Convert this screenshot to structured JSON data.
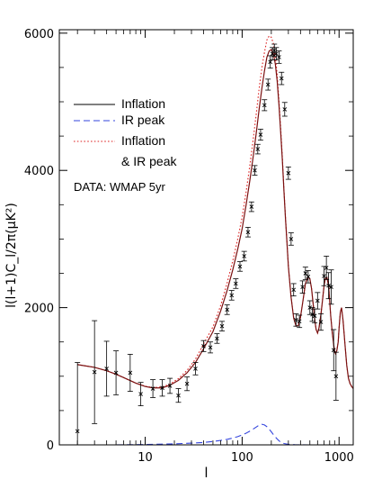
{
  "chart_data": {
    "type": "line",
    "title": "",
    "xlabel": "l",
    "ylabel": "l(l+1)C_l/2π(μK²)",
    "xscale": "log",
    "xlim": [
      1.3,
      1400
    ],
    "ylim": [
      0,
      6050
    ],
    "x_ticks": [
      {
        "value": 10,
        "label": "10"
      },
      {
        "value": 100,
        "label": "100"
      },
      {
        "value": 1000,
        "label": "1000"
      }
    ],
    "y_ticks": [
      {
        "value": 0,
        "label": "0"
      },
      {
        "value": 2000,
        "label": "2000"
      },
      {
        "value": 4000,
        "label": "4000"
      },
      {
        "value": 6000,
        "label": "6000"
      }
    ],
    "grid": false,
    "legend_position": "upper-left",
    "legend": [
      {
        "label": "Inflation",
        "style": "solid",
        "color": "#000000"
      },
      {
        "label": "IR peak",
        "style": "dashed",
        "color": "#3344dd"
      },
      {
        "label": "Inflation",
        "style": "dotted",
        "color": "#dd2222"
      },
      {
        "label": "& IR peak",
        "style": "none",
        "color": "#000000"
      }
    ],
    "annotation": "DATA: WMAP 5yr",
    "series": [
      {
        "name": "Inflation",
        "style": "solid",
        "color": "#7a1010",
        "x": [
          2,
          3,
          4,
          5,
          6,
          8,
          10,
          12,
          15,
          18,
          22,
          27,
          33,
          40,
          50,
          60,
          70,
          80,
          90,
          100,
          110,
          120,
          130,
          140,
          150,
          160,
          170,
          180,
          190,
          200,
          210,
          220,
          230,
          240,
          250,
          260,
          270,
          280,
          290,
          300,
          320,
          340,
          360,
          380,
          400,
          420,
          450,
          480,
          500,
          520,
          540,
          560,
          580,
          600,
          620,
          650,
          680,
          700,
          720,
          750,
          780,
          800,
          820,
          850,
          880,
          900,
          920,
          950,
          980,
          1000,
          1030,
          1060,
          1100,
          1150,
          1200,
          1250,
          1300,
          1350,
          1400
        ],
        "y": [
          1170,
          1130,
          1080,
          1030,
          980,
          900,
          850,
          830,
          830,
          870,
          940,
          1050,
          1200,
          1400,
          1650,
          1950,
          2250,
          2550,
          2850,
          3150,
          3500,
          3850,
          4200,
          4550,
          4900,
          5200,
          5450,
          5650,
          5740,
          5760,
          5700,
          5550,
          5300,
          4950,
          4550,
          4150,
          3700,
          3300,
          2950,
          2600,
          2150,
          1850,
          1730,
          1740,
          1860,
          2060,
          2350,
          2450,
          2420,
          2280,
          2060,
          1830,
          1680,
          1630,
          1700,
          1900,
          2150,
          2320,
          2420,
          2440,
          2320,
          2100,
          1880,
          1640,
          1460,
          1360,
          1330,
          1380,
          1500,
          1700,
          1930,
          2000,
          1810,
          1470,
          1160,
          970,
          890,
          850,
          820
        ]
      },
      {
        "name": "IR peak",
        "style": "dashed",
        "color": "#3344dd",
        "x": [
          2,
          5,
          10,
          20,
          30,
          40,
          50,
          60,
          70,
          80,
          90,
          100,
          110,
          120,
          130,
          140,
          150,
          160,
          170,
          180,
          190,
          200,
          210,
          220,
          230,
          240,
          250,
          270,
          300,
          350,
          400,
          500,
          700,
          1000,
          1400
        ],
        "y": [
          0,
          0,
          5,
          15,
          25,
          35,
          50,
          65,
          80,
          100,
          120,
          145,
          170,
          200,
          230,
          260,
          290,
          300,
          290,
          265,
          230,
          190,
          150,
          115,
          85,
          60,
          40,
          20,
          8,
          3,
          1,
          0,
          0,
          0,
          0
        ]
      },
      {
        "name": "Inflation & IR peak",
        "style": "dotted",
        "color": "#dd2222",
        "x": [
          2,
          3,
          4,
          5,
          6,
          8,
          10,
          12,
          15,
          18,
          22,
          27,
          33,
          40,
          50,
          60,
          70,
          80,
          90,
          100,
          110,
          120,
          130,
          140,
          150,
          160,
          170,
          180,
          190,
          200,
          210,
          220,
          230,
          240,
          250,
          260,
          270,
          280,
          290,
          300,
          320,
          340,
          360,
          380,
          400,
          420,
          450,
          480,
          500,
          520,
          540,
          560,
          580,
          600,
          620,
          650,
          680,
          700,
          720,
          750,
          780,
          800,
          820,
          850,
          880,
          900,
          920,
          950,
          980,
          1000,
          1030,
          1060,
          1100,
          1150,
          1200,
          1250,
          1300,
          1350,
          1400
        ],
        "y": [
          1170,
          1130,
          1080,
          1030,
          980,
          900,
          855,
          835,
          845,
          885,
          965,
          1085,
          1250,
          1470,
          1720,
          2030,
          2360,
          2680,
          3000,
          3320,
          3690,
          4070,
          4450,
          4830,
          5200,
          5500,
          5720,
          5900,
          5960,
          5940,
          5850,
          5670,
          5390,
          5010,
          4610,
          4190,
          3720,
          3320,
          2960,
          2610,
          2150,
          1850,
          1730,
          1740,
          1860,
          2060,
          2350,
          2450,
          2420,
          2280,
          2060,
          1830,
          1680,
          1630,
          1700,
          1900,
          2150,
          2320,
          2420,
          2440,
          2320,
          2100,
          1880,
          1640,
          1460,
          1360,
          1330,
          1380,
          1500,
          1700,
          1930,
          2000,
          1810,
          1470,
          1160,
          970,
          890,
          850,
          820
        ]
      }
    ],
    "data_points": {
      "name": "DATA: WMAP 5yr",
      "x": [
        2,
        3,
        4,
        5,
        7,
        9,
        12,
        15,
        18,
        22,
        27,
        33,
        40,
        47,
        55,
        62,
        70,
        78,
        86,
        95,
        105,
        115,
        125,
        135,
        145,
        155,
        170,
        185,
        195,
        205,
        215,
        225,
        240,
        255,
        275,
        300,
        320,
        340,
        360,
        390,
        420,
        450,
        480,
        500,
        530,
        560,
        600,
        650,
        700,
        740,
        780,
        830,
        880,
        930
      ],
      "y": [
        200,
        1060,
        1110,
        1050,
        1050,
        740,
        820,
        830,
        860,
        720,
        890,
        1110,
        1440,
        1420,
        1550,
        1730,
        1970,
        2180,
        2350,
        2600,
        2750,
        3100,
        3470,
        4000,
        4310,
        4520,
        4950,
        5250,
        5580,
        5700,
        5750,
        5700,
        5650,
        5340,
        4890,
        3960,
        3000,
        2260,
        1820,
        1800,
        2300,
        2500,
        2450,
        2000,
        1900,
        1880,
        2100,
        1790,
        2460,
        2580,
        2320,
        2300,
        1380,
        1000
      ],
      "err": [
        1000,
        750,
        400,
        320,
        270,
        170,
        130,
        120,
        110,
        100,
        100,
        90,
        80,
        80,
        70,
        70,
        70,
        70,
        70,
        70,
        70,
        70,
        70,
        70,
        70,
        80,
        80,
        80,
        90,
        90,
        90,
        90,
        90,
        90,
        100,
        90,
        90,
        90,
        90,
        90,
        90,
        90,
        90,
        100,
        100,
        100,
        120,
        120,
        140,
        170,
        190,
        250,
        300,
        350
      ]
    }
  }
}
